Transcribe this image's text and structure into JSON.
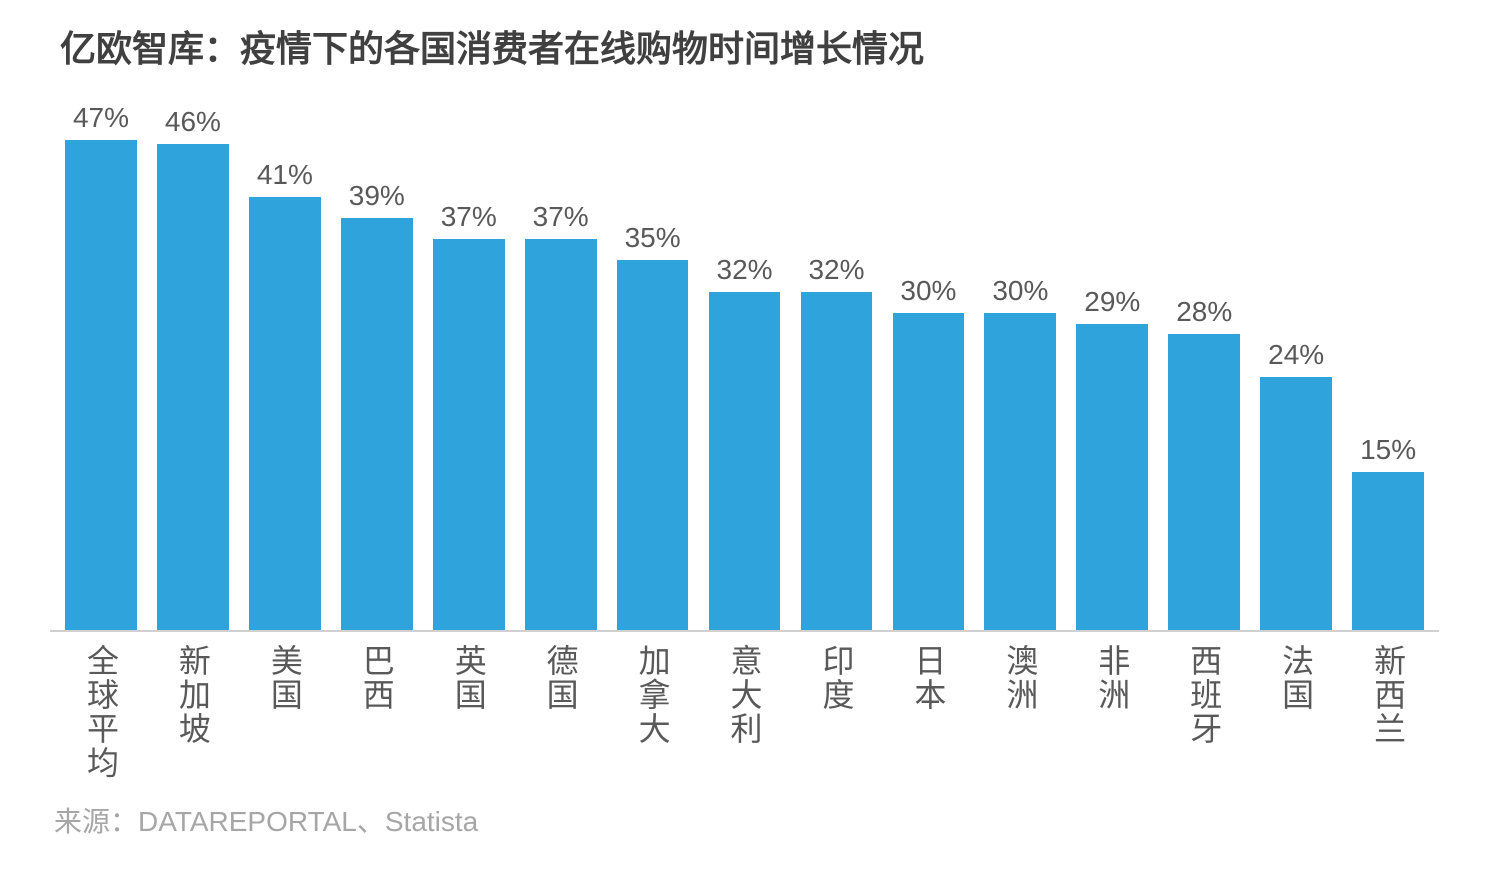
{
  "chart": {
    "type": "bar",
    "title": "亿欧智库：疫情下的各国消费者在线购物时间增长情况",
    "source": "来源：DATAREPORTAL、Statista",
    "ylim_max": 50,
    "bar_color": "#2ea3dc",
    "title_color": "#404040",
    "label_color": "#595959",
    "value_color": "#595959",
    "source_color": "#a6a6a6",
    "background_color": "#ffffff",
    "axis_line_color": "#d0d0d0",
    "title_fontsize": 36,
    "value_fontsize": 28,
    "label_fontsize": 32,
    "source_fontsize": 28,
    "bar_width_ratio": 0.78,
    "bars": [
      {
        "label": "全球平均",
        "value": 47,
        "display": "47%"
      },
      {
        "label": "新加坡",
        "value": 46,
        "display": "46%"
      },
      {
        "label": "美国",
        "value": 41,
        "display": "41%"
      },
      {
        "label": "巴西",
        "value": 39,
        "display": "39%"
      },
      {
        "label": "英国",
        "value": 37,
        "display": "37%"
      },
      {
        "label": "德国",
        "value": 37,
        "display": "37%"
      },
      {
        "label": "加拿大",
        "value": 35,
        "display": "35%"
      },
      {
        "label": "意大利",
        "value": 32,
        "display": "32%"
      },
      {
        "label": "印度",
        "value": 32,
        "display": "32%"
      },
      {
        "label": "日本",
        "value": 30,
        "display": "30%"
      },
      {
        "label": "澳洲",
        "value": 30,
        "display": "30%"
      },
      {
        "label": "非洲",
        "value": 29,
        "display": "29%"
      },
      {
        "label": "西班牙",
        "value": 28,
        "display": "28%"
      },
      {
        "label": "法国",
        "value": 24,
        "display": "24%"
      },
      {
        "label": "新西兰",
        "value": 15,
        "display": "15%"
      }
    ]
  }
}
